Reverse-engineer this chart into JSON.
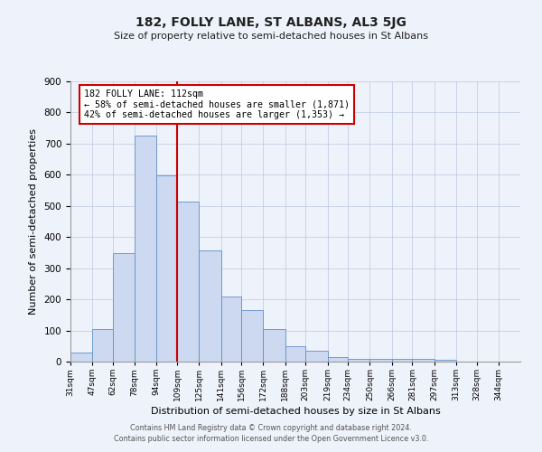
{
  "title": "182, FOLLY LANE, ST ALBANS, AL3 5JG",
  "subtitle": "Size of property relative to semi-detached houses in St Albans",
  "xlabel": "Distribution of semi-detached houses by size in St Albans",
  "ylabel": "Number of semi-detached properties",
  "bin_labels": [
    "31sqm",
    "47sqm",
    "62sqm",
    "78sqm",
    "94sqm",
    "109sqm",
    "125sqm",
    "141sqm",
    "156sqm",
    "172sqm",
    "188sqm",
    "203sqm",
    "219sqm",
    "234sqm",
    "250sqm",
    "266sqm",
    "281sqm",
    "297sqm",
    "313sqm",
    "328sqm",
    "344sqm"
  ],
  "bin_edges": [
    31,
    47,
    62,
    78,
    94,
    109,
    125,
    141,
    156,
    172,
    188,
    203,
    219,
    234,
    250,
    266,
    281,
    297,
    313,
    328,
    344
  ],
  "bar_values": [
    30,
    105,
    348,
    725,
    598,
    513,
    358,
    210,
    165,
    105,
    50,
    35,
    15,
    10,
    10,
    10,
    10,
    5,
    0,
    0
  ],
  "bar_color": "#ccd9f0",
  "bar_edge_color": "#6090c8",
  "vline_x": 109,
  "vline_color": "#cc0000",
  "annotation_title": "182 FOLLY LANE: 112sqm",
  "annotation_line1": "← 58% of semi-detached houses are smaller (1,871)",
  "annotation_line2": "42% of semi-detached houses are larger (1,353) →",
  "annotation_box_facecolor": "#ffffff",
  "annotation_box_edgecolor": "#cc0000",
  "ylim": [
    0,
    900
  ],
  "yticks": [
    0,
    100,
    200,
    300,
    400,
    500,
    600,
    700,
    800,
    900
  ],
  "xlim_left": 31,
  "xlim_right": 360,
  "footer1": "Contains HM Land Registry data © Crown copyright and database right 2024.",
  "footer2": "Contains public sector information licensed under the Open Government Licence v3.0.",
  "bg_color": "#eef2fa",
  "plot_bg_color": "#eef2fa"
}
